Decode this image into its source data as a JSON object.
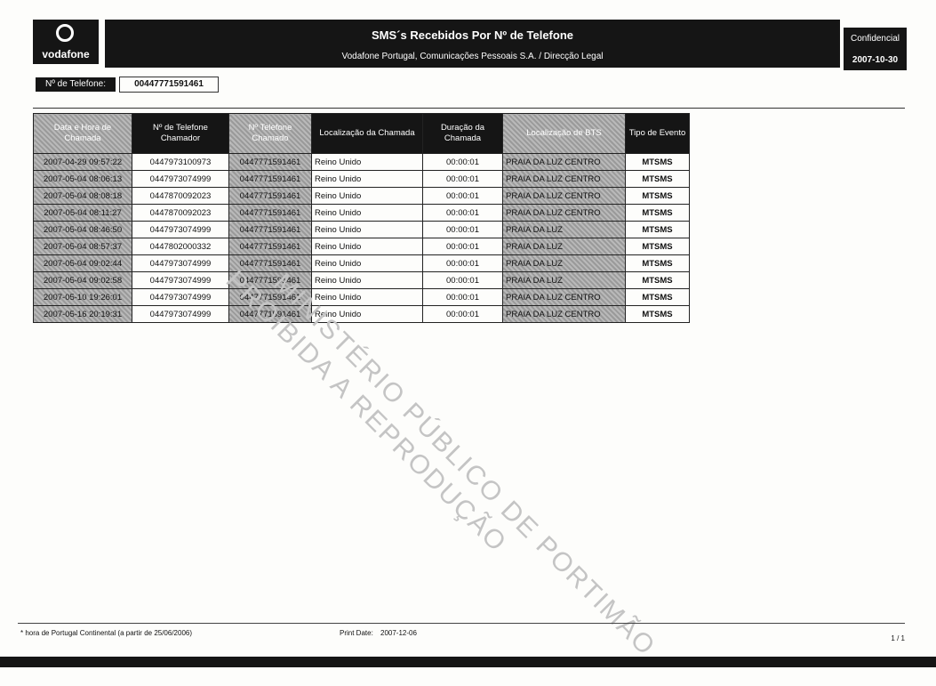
{
  "header": {
    "logo": "vodafone",
    "title": "SMS´s Recebidos Por Nº de Telefone",
    "subtitle": "Vodafone Portugal, Comunicações Pessoais S.A.  /  Direcção Legal",
    "classification": "Confidencial",
    "date": "2007-10-30"
  },
  "phone": {
    "label": "Nº de Telefone:",
    "value": "00447771591461"
  },
  "table": {
    "columns": [
      "Data e Hora de Chamada",
      "Nº de Telefone Chamador",
      "Nº Telefone Chamado",
      "Localização da Chamada",
      "Duração da Chamada",
      "Localização de BTS",
      "Tipo de Evento"
    ],
    "rows": [
      [
        "2007-04-29 09:57:22",
        "0447973100973",
        "0447771591461",
        "Reino Unido",
        "00:00:01",
        "PRAIA DA LUZ CENTRO",
        "MTSMS"
      ],
      [
        "2007-05-04 08:06:13",
        "0447973074999",
        "0447771591461",
        "Reino Unido",
        "00:00:01",
        "PRAIA DA LUZ CENTRO",
        "MTSMS"
      ],
      [
        "2007-05-04 08:08:18",
        "0447870092023",
        "0447771591461",
        "Reino Unido",
        "00:00:01",
        "PRAIA DA LUZ CENTRO",
        "MTSMS"
      ],
      [
        "2007-05-04 08:11:27",
        "0447870092023",
        "0447771591461",
        "Reino Unido",
        "00:00:01",
        "PRAIA DA LUZ CENTRO",
        "MTSMS"
      ],
      [
        "2007-05-04 08:46:50",
        "0447973074999",
        "0447771591461",
        "Reino Unido",
        "00:00:01",
        "PRAIA DA LUZ",
        "MTSMS"
      ],
      [
        "2007-05-04 08:57:37",
        "0447802000332",
        "0447771591461",
        "Reino Unido",
        "00:00:01",
        "PRAIA DA LUZ",
        "MTSMS"
      ],
      [
        "2007-05-04 09:02:44",
        "0447973074999",
        "0447771591461",
        "Reino Unido",
        "00:00:01",
        "PRAIA DA LUZ",
        "MTSMS"
      ],
      [
        "2007-05-04 09:02:58",
        "0447973074999",
        "0447771591461",
        "Reino Unido",
        "00:00:01",
        "PRAIA DA LUZ",
        "MTSMS"
      ],
      [
        "2007-05-10 19:26:01",
        "0447973074999",
        "0447771591461",
        "Reino Unido",
        "00:00:01",
        "PRAIA DA LUZ CENTRO",
        "MTSMS"
      ],
      [
        "2007-05-16 20:19:31",
        "0447973074999",
        "0447771591461",
        "Reino Unido",
        "00:00:01",
        "PRAIA DA LUZ CENTRO",
        "MTSMS"
      ]
    ]
  },
  "watermark": [
    "MINISTÉRIO PÚBLICO DE PORTIMÃO",
    "PROIBIDA A REPRODUÇÃO"
  ],
  "footer": {
    "note": "* hora de Portugal Continental (a partir de 25/06/2006)",
    "print_date_label": "Print Date:",
    "print_date": "2007-12-06",
    "page": "1 / 1"
  }
}
